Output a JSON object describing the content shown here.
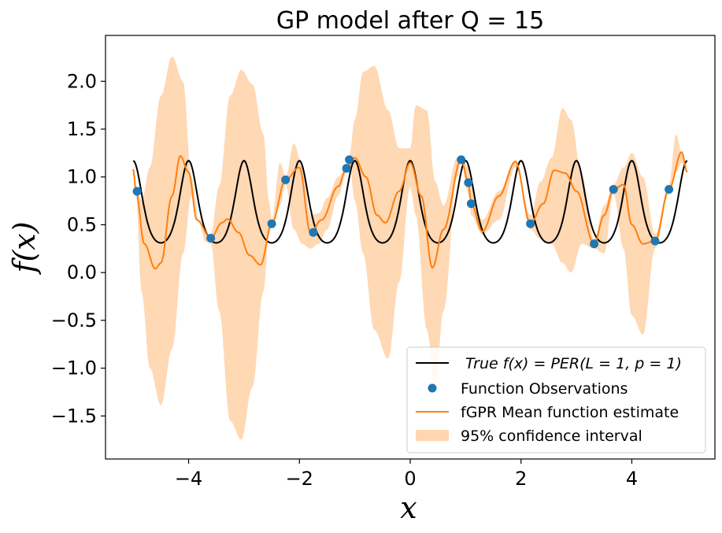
{
  "chart_data": {
    "type": "line",
    "title": "GP model after Q = 15",
    "xlabel": "x",
    "ylabel": "f(x)",
    "xlim": [
      -5.5,
      5.5
    ],
    "ylim": [
      -1.95,
      2.48
    ],
    "xticks": [
      -4,
      -2,
      0,
      2,
      4
    ],
    "yticks": [
      -1.5,
      -1.0,
      -0.5,
      0.0,
      0.5,
      1.0,
      1.5,
      2.0
    ],
    "xtick_labels": [
      "−4",
      "−2",
      "0",
      "2",
      "4"
    ],
    "ytick_labels": [
      "−1.5",
      "−1.0",
      "−0.5",
      "0.0",
      "0.5",
      "1.0",
      "1.5",
      "2.0"
    ],
    "grid": false,
    "legend_position": "bottom-right",
    "legend": {
      "true": "True f(x) = PER(L = 1, p = 1)",
      "observations": "Function Observations",
      "mean": "fGPR Mean function estimate",
      "ci": "95% confidence interval"
    },
    "colors": {
      "true": "#000000",
      "observations": "#1f77b4",
      "mean": "#ff7f0e",
      "ci": "#ffd6b0"
    },
    "x_range": [
      -5,
      5
    ],
    "observations": {
      "x": [
        -4.93,
        -3.6,
        -2.5,
        -2.25,
        -1.75,
        -1.15,
        -1.1,
        0.92,
        1.05,
        1.1,
        2.17,
        3.32,
        3.67,
        4.42,
        4.67
      ],
      "y": [
        0.85,
        0.36,
        0.51,
        0.97,
        0.42,
        1.09,
        1.18,
        1.18,
        0.94,
        0.72,
        0.51,
        0.3,
        0.87,
        0.33,
        0.87
      ]
    },
    "mean_knots": {
      "x": [
        -5.0,
        -4.95,
        -4.8,
        -4.6,
        -4.5,
        -4.3,
        -4.15,
        -4.0,
        -3.85,
        -3.6,
        -3.4,
        -3.3,
        -3.1,
        -2.9,
        -2.7,
        -2.5,
        -2.25,
        -2.0,
        -1.8,
        -1.6,
        -1.3,
        -1.15,
        -1.0,
        -0.8,
        -0.6,
        -0.45,
        -0.2,
        0.0,
        0.2,
        0.4,
        0.6,
        0.92,
        1.05,
        1.1,
        1.3,
        1.6,
        1.9,
        2.17,
        2.4,
        2.6,
        2.8,
        3.0,
        3.32,
        3.5,
        3.67,
        3.85,
        4.0,
        4.2,
        4.42,
        4.67,
        4.9,
        5.0
      ],
      "y": [
        1.08,
        0.85,
        0.3,
        0.04,
        0.1,
        0.8,
        1.22,
        1.05,
        0.55,
        0.36,
        0.52,
        0.56,
        0.42,
        0.18,
        0.08,
        0.51,
        0.97,
        1.1,
        0.42,
        0.55,
        0.9,
        1.09,
        1.2,
        1.0,
        0.6,
        0.52,
        0.85,
        1.15,
        0.8,
        0.05,
        0.45,
        1.18,
        0.94,
        0.72,
        0.43,
        0.8,
        1.16,
        0.51,
        0.72,
        1.07,
        1.04,
        0.85,
        0.3,
        0.6,
        0.87,
        0.92,
        0.5,
        0.3,
        0.33,
        0.87,
        1.26,
        1.05
      ]
    },
    "ci_upper_knots": {
      "x": [
        -5.0,
        -4.95,
        -4.85,
        -4.7,
        -4.5,
        -4.3,
        -4.1,
        -3.95,
        -3.8,
        -3.7,
        -3.6,
        -3.45,
        -3.25,
        -3.05,
        -2.85,
        -2.65,
        -2.55,
        -2.5,
        -2.35,
        -2.25,
        -2.1,
        -1.95,
        -1.8,
        -1.65,
        -1.5,
        -1.3,
        -1.15,
        -1.1,
        -1.0,
        -0.85,
        -0.65,
        -0.4,
        -0.2,
        0.0,
        0.1,
        0.3,
        0.45,
        0.6,
        0.85,
        0.92,
        1.05,
        1.1,
        1.3,
        1.6,
        1.9,
        2.17,
        2.35,
        2.55,
        2.75,
        2.9,
        3.1,
        3.32,
        3.5,
        3.67,
        3.85,
        4.0,
        4.2,
        4.42,
        4.67,
        4.8,
        4.9,
        5.0
      ],
      "y": [
        1.1,
        0.9,
        0.75,
        1.1,
        1.85,
        2.26,
        2.0,
        1.0,
        0.5,
        0.42,
        0.4,
        0.9,
        1.85,
        2.12,
        1.97,
        1.45,
        0.75,
        0.55,
        1.15,
        1.0,
        1.35,
        1.12,
        0.6,
        0.62,
        0.78,
        1.0,
        1.12,
        1.22,
        1.6,
        2.1,
        2.16,
        1.7,
        1.3,
        1.3,
        1.75,
        1.7,
        0.95,
        0.7,
        1.2,
        1.22,
        1.1,
        0.9,
        0.55,
        0.85,
        1.18,
        0.6,
        0.95,
        1.2,
        1.72,
        1.6,
        1.0,
        0.35,
        0.7,
        0.92,
        1.1,
        1.25,
        1.0,
        0.4,
        0.92,
        1.45,
        1.25,
        1.05
      ]
    },
    "ci_lower_knots": {
      "x": [
        -5.0,
        -4.95,
        -4.85,
        -4.7,
        -4.5,
        -4.3,
        -4.1,
        -3.95,
        -3.8,
        -3.7,
        -3.6,
        -3.45,
        -3.25,
        -3.05,
        -2.85,
        -2.65,
        -2.55,
        -2.5,
        -2.35,
        -2.25,
        -2.1,
        -1.95,
        -1.8,
        -1.65,
        -1.5,
        -1.3,
        -1.15,
        -1.1,
        -1.0,
        -0.85,
        -0.65,
        -0.4,
        -0.2,
        0.0,
        0.1,
        0.3,
        0.45,
        0.6,
        0.85,
        0.92,
        1.05,
        1.1,
        1.3,
        1.6,
        1.9,
        2.17,
        2.35,
        2.55,
        2.75,
        2.9,
        3.1,
        3.32,
        3.5,
        3.67,
        3.85,
        4.0,
        4.2,
        4.42,
        4.67,
        4.8,
        4.9,
        5.0
      ],
      "y": [
        1.05,
        0.8,
        -0.2,
        -1.0,
        -1.39,
        -0.8,
        0.2,
        0.8,
        0.5,
        0.32,
        0.3,
        -0.4,
        -1.55,
        -1.75,
        -1.2,
        -0.2,
        0.4,
        0.48,
        0.7,
        0.92,
        0.45,
        0.3,
        0.25,
        0.3,
        0.45,
        0.8,
        1.05,
        1.15,
        0.75,
        0.2,
        -0.6,
        -0.9,
        -0.1,
        0.9,
        0.6,
        -0.6,
        -1.2,
        -0.4,
        1.0,
        1.15,
        0.82,
        0.6,
        0.4,
        0.55,
        1.1,
        0.45,
        0.35,
        0.3,
        0.1,
        0.0,
        0.3,
        0.25,
        0.2,
        0.82,
        0.25,
        -0.45,
        -0.65,
        0.25,
        0.82,
        1.05,
        1.15,
        1.05
      ]
    }
  }
}
